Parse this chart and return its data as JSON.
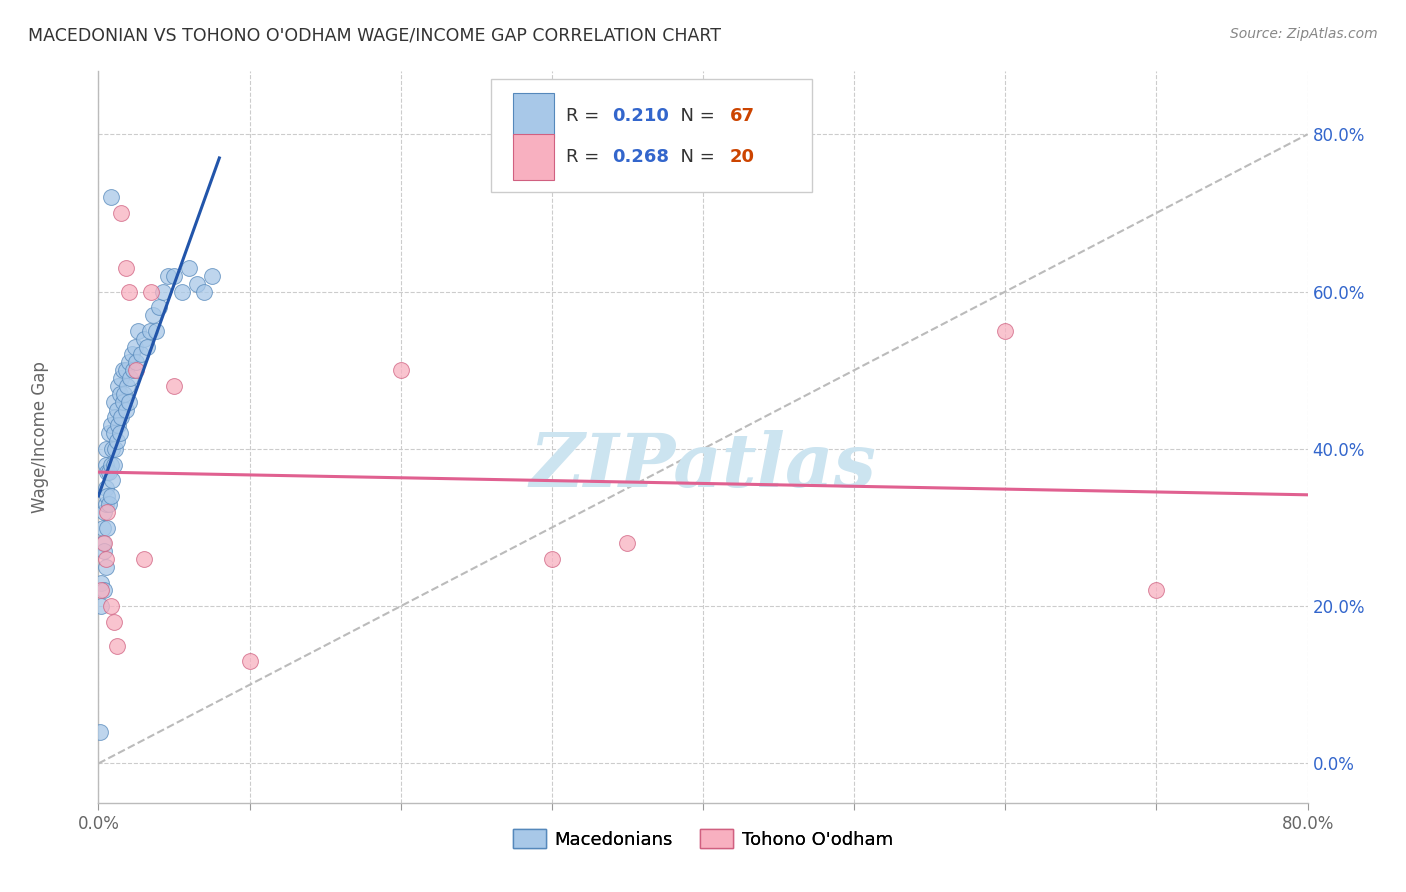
{
  "title": "MACEDONIAN VS TOHONO O'ODHAM WAGE/INCOME GAP CORRELATION CHART",
  "source": "Source: ZipAtlas.com",
  "ylabel": "Wage/Income Gap",
  "xlim": [
    0.0,
    0.8
  ],
  "ylim": [
    -0.05,
    0.88
  ],
  "right_ytick_values": [
    0.0,
    0.2,
    0.4,
    0.6,
    0.8
  ],
  "xtick_values": [
    0.0,
    0.1,
    0.2,
    0.3,
    0.4,
    0.5,
    0.6,
    0.7,
    0.8
  ],
  "blue_fill": "#a8c8e8",
  "blue_edge": "#5588bb",
  "pink_fill": "#f8b0c0",
  "pink_edge": "#d06080",
  "blue_line": "#2255aa",
  "pink_line": "#e06090",
  "diag_color": "#bbbbbb",
  "R_blue": 0.21,
  "N_blue": 67,
  "R_pink": 0.268,
  "N_pink": 20,
  "legend_label_blue": "Macedonians",
  "legend_label_pink": "Tohono O'odham",
  "blue_x": [
    0.001,
    0.002,
    0.002,
    0.003,
    0.003,
    0.004,
    0.004,
    0.004,
    0.005,
    0.005,
    0.005,
    0.005,
    0.005,
    0.006,
    0.006,
    0.006,
    0.007,
    0.007,
    0.007,
    0.008,
    0.008,
    0.008,
    0.009,
    0.009,
    0.01,
    0.01,
    0.01,
    0.011,
    0.011,
    0.012,
    0.012,
    0.013,
    0.013,
    0.014,
    0.014,
    0.015,
    0.015,
    0.016,
    0.016,
    0.017,
    0.018,
    0.018,
    0.019,
    0.02,
    0.02,
    0.021,
    0.022,
    0.023,
    0.024,
    0.025,
    0.026,
    0.028,
    0.03,
    0.032,
    0.034,
    0.036,
    0.038,
    0.04,
    0.043,
    0.046,
    0.05,
    0.055,
    0.06,
    0.065,
    0.07,
    0.075,
    0.008
  ],
  "blue_y": [
    0.04,
    0.2,
    0.23,
    0.28,
    0.3,
    0.22,
    0.27,
    0.32,
    0.25,
    0.33,
    0.35,
    0.38,
    0.4,
    0.3,
    0.34,
    0.37,
    0.33,
    0.37,
    0.42,
    0.34,
    0.38,
    0.43,
    0.36,
    0.4,
    0.38,
    0.42,
    0.46,
    0.4,
    0.44,
    0.41,
    0.45,
    0.43,
    0.48,
    0.42,
    0.47,
    0.44,
    0.49,
    0.46,
    0.5,
    0.47,
    0.45,
    0.5,
    0.48,
    0.46,
    0.51,
    0.49,
    0.52,
    0.5,
    0.53,
    0.51,
    0.55,
    0.52,
    0.54,
    0.53,
    0.55,
    0.57,
    0.55,
    0.58,
    0.6,
    0.62,
    0.62,
    0.6,
    0.63,
    0.61,
    0.6,
    0.62,
    0.72
  ],
  "pink_x": [
    0.002,
    0.004,
    0.005,
    0.006,
    0.008,
    0.01,
    0.012,
    0.015,
    0.018,
    0.02,
    0.025,
    0.03,
    0.035,
    0.05,
    0.1,
    0.2,
    0.3,
    0.35,
    0.6,
    0.7
  ],
  "pink_y": [
    0.22,
    0.28,
    0.26,
    0.32,
    0.2,
    0.18,
    0.15,
    0.7,
    0.63,
    0.6,
    0.5,
    0.26,
    0.6,
    0.48,
    0.13,
    0.5,
    0.26,
    0.28,
    0.55,
    0.22
  ],
  "watermark_text": "ZIPatlas",
  "watermark_color": "#cce4f0",
  "bg": "#ffffff",
  "grid_color": "#cccccc",
  "grid_style": "--",
  "right_label_color": "#3366cc",
  "N_color": "#cc4400"
}
